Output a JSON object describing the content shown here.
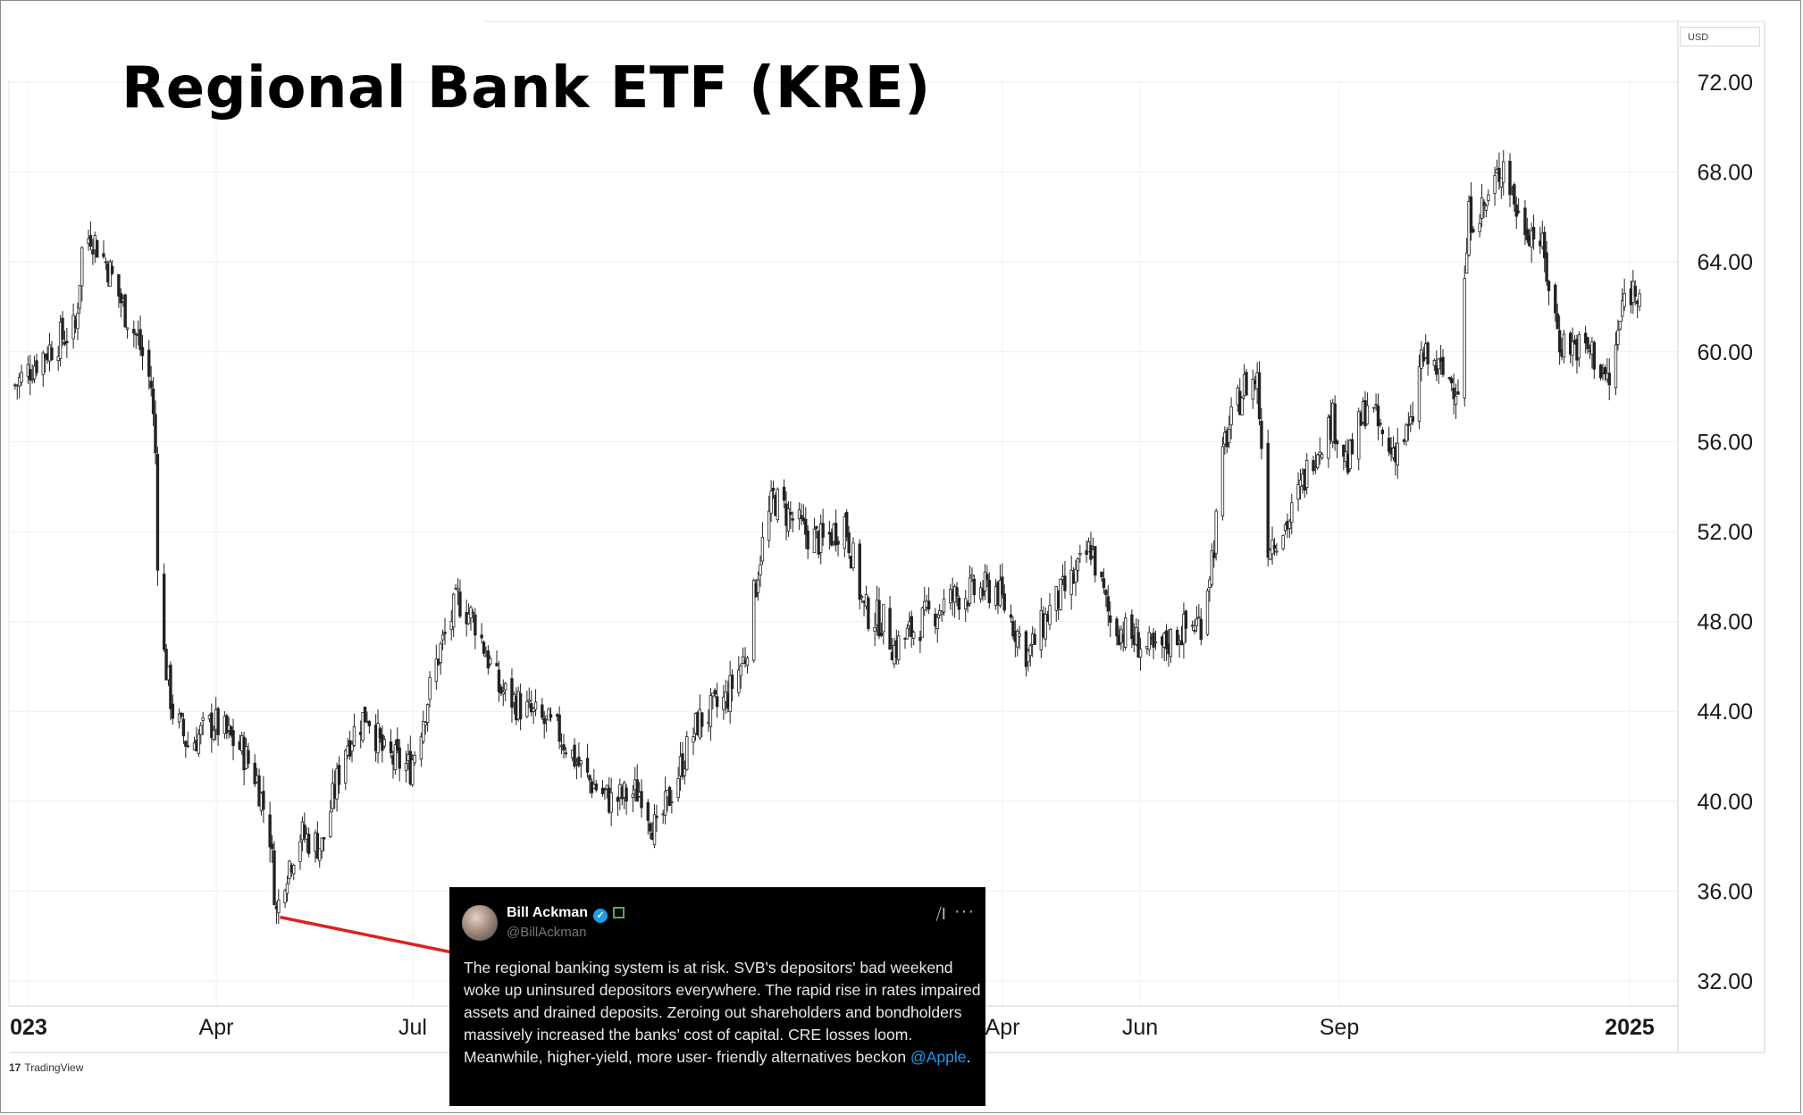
{
  "chart_data": {
    "type": "candlestick",
    "title": "Regional Bank ETF (KRE)",
    "currency": "USD",
    "ylim": [
      30.0,
      74.0
    ],
    "yticks": [
      "72.00",
      "68.00",
      "64.00",
      "60.00",
      "56.00",
      "52.00",
      "48.00",
      "44.00",
      "40.00",
      "36.00",
      "32.00"
    ],
    "xticks": [
      {
        "label": "023",
        "bold": true
      },
      {
        "label": "Apr",
        "bold": false
      },
      {
        "label": "Jul",
        "bold": false
      },
      {
        "label": "Apr",
        "bold": false
      },
      {
        "label": "Jun",
        "bold": false
      },
      {
        "label": "Sep",
        "bold": false
      },
      {
        "label": "2025",
        "bold": true
      }
    ],
    "grid": true,
    "series": [
      {
        "points": [
          [
            "2023-01-03",
            58.5
          ],
          [
            "2023-01-13",
            59.6
          ],
          [
            "2023-01-24",
            60.6
          ],
          [
            "2023-01-31",
            61.0
          ],
          [
            "2023-02-03",
            64.5
          ],
          [
            "2023-02-07",
            65.3
          ],
          [
            "2023-02-15",
            63.8
          ],
          [
            "2023-02-22",
            62.0
          ],
          [
            "2023-03-01",
            60.5
          ],
          [
            "2023-03-07",
            58.5
          ],
          [
            "2023-03-09",
            55.5
          ],
          [
            "2023-03-10",
            51.0
          ],
          [
            "2023-03-13",
            46.5
          ],
          [
            "2023-03-17",
            44.0
          ],
          [
            "2023-03-24",
            42.5
          ],
          [
            "2023-04-05",
            43.5
          ],
          [
            "2023-04-18",
            42.3
          ],
          [
            "2023-04-25",
            41.0
          ],
          [
            "2023-05-01",
            38.5
          ],
          [
            "2023-05-04",
            35.0
          ],
          [
            "2023-05-08",
            36.8
          ],
          [
            "2023-05-15",
            38.5
          ],
          [
            "2023-05-25",
            38.0
          ],
          [
            "2023-06-05",
            42.5
          ],
          [
            "2023-06-15",
            44.0
          ],
          [
            "2023-06-23",
            42.0
          ],
          [
            "2023-07-05",
            41.5
          ],
          [
            "2023-07-18",
            46.5
          ],
          [
            "2023-07-27",
            49.0
          ],
          [
            "2023-08-04",
            48.0
          ],
          [
            "2023-08-15",
            45.0
          ],
          [
            "2023-08-28",
            44.0
          ],
          [
            "2023-09-12",
            43.0
          ],
          [
            "2023-09-25",
            41.0
          ],
          [
            "2023-10-06",
            40.0
          ],
          [
            "2023-10-20",
            40.5
          ],
          [
            "2023-10-27",
            38.5
          ],
          [
            "2023-11-03",
            40.5
          ],
          [
            "2023-11-15",
            43.5
          ],
          [
            "2023-11-28",
            44.5
          ],
          [
            "2023-12-07",
            46.5
          ],
          [
            "2023-12-14",
            51.0
          ],
          [
            "2023-12-20",
            53.5
          ],
          [
            "2024-01-03",
            52.0
          ],
          [
            "2024-01-12",
            51.5
          ],
          [
            "2024-01-22",
            52.5
          ],
          [
            "2024-01-31",
            48.5
          ],
          [
            "2024-02-09",
            48.0
          ],
          [
            "2024-02-14",
            46.8
          ],
          [
            "2024-03-01",
            48.3
          ],
          [
            "2024-03-15",
            49.2
          ],
          [
            "2024-04-01",
            49.5
          ],
          [
            "2024-04-16",
            46.5
          ],
          [
            "2024-04-26",
            48.5
          ],
          [
            "2024-05-08",
            50.0
          ],
          [
            "2024-05-15",
            51.3
          ],
          [
            "2024-05-24",
            48.0
          ],
          [
            "2024-06-04",
            47.2
          ],
          [
            "2024-06-14",
            46.5
          ],
          [
            "2024-06-24",
            47.5
          ],
          [
            "2024-07-05",
            48.0
          ],
          [
            "2024-07-11",
            51.5
          ],
          [
            "2024-07-16",
            56.0
          ],
          [
            "2024-07-25",
            58.5
          ],
          [
            "2024-07-31",
            58.8
          ],
          [
            "2024-08-05",
            51.5
          ],
          [
            "2024-08-15",
            52.5
          ],
          [
            "2024-08-26",
            55.5
          ],
          [
            "2024-09-04",
            57.0
          ],
          [
            "2024-09-11",
            55.0
          ],
          [
            "2024-09-20",
            57.8
          ],
          [
            "2024-09-30",
            55.5
          ],
          [
            "2024-10-10",
            56.5
          ],
          [
            "2024-10-15",
            59.8
          ],
          [
            "2024-10-25",
            59.0
          ],
          [
            "2024-11-01",
            58.5
          ],
          [
            "2024-11-06",
            66.0
          ],
          [
            "2024-11-14",
            66.5
          ],
          [
            "2024-11-22",
            68.5
          ],
          [
            "2024-11-29",
            66.0
          ],
          [
            "2024-12-09",
            65.0
          ],
          [
            "2024-12-18",
            60.5
          ],
          [
            "2025-01-02",
            60.0
          ],
          [
            "2025-01-10",
            58.5
          ],
          [
            "2025-01-17",
            62.5
          ],
          [
            "2025-01-24",
            63.0
          ]
        ]
      }
    ],
    "annotation": {
      "from_date": "2023-05-04",
      "from_value": 35.0,
      "color": "#e02020"
    }
  },
  "tweet": {
    "name": "Bill Ackman",
    "handle": "@BillAckman",
    "body": "The regional banking system is at risk. SVB's depositors' bad weekend woke up uninsured depositors everywhere. The rapid rise in rates impaired assets and drained deposits. Zeroing out shareholders and bondholders massively increased the banks’ cost of capital. CRE losses loom. Meanwhile, higher-yield, more user- friendly alternatives beckon ",
    "mention": "@Apple",
    "trail": "."
  },
  "brand": {
    "logo": "17",
    "name": "TradingView"
  }
}
